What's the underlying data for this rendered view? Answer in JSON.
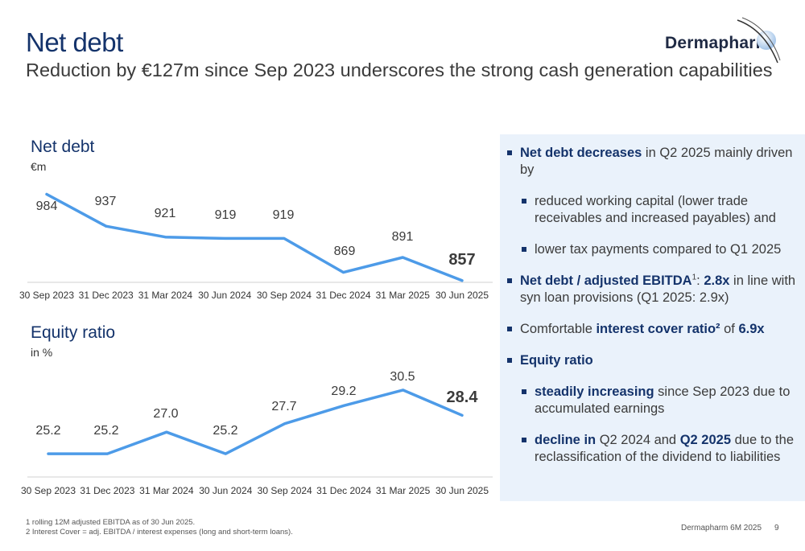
{
  "header": {
    "title": "Net debt",
    "subtitle": "Reduction by €127m since Sep 2023 underscores the strong cash generation capabilities",
    "logo_text": "Dermapharm"
  },
  "chart_data": [
    {
      "type": "line",
      "title": "Net debt",
      "unit": "€m",
      "categories": [
        "30 Sep 2023",
        "31 Dec 2023",
        "31 Mar 2024",
        "30 Jun 2024",
        "30 Sep 2024",
        "31 Dec 2024",
        "31 Mar 2025",
        "30 Jun 2025"
      ],
      "values": [
        984,
        937,
        921,
        919,
        919,
        869,
        891,
        857
      ],
      "labels": [
        "984",
        "937",
        "921",
        "919",
        "919",
        "869",
        "891",
        "857"
      ],
      "ylim": [
        820,
        1000
      ],
      "color": "#4d9be8",
      "grid": false
    },
    {
      "type": "line",
      "title": "Equity ratio",
      "unit": "in %",
      "categories": [
        "30 Sep 2023",
        "31 Dec 2023",
        "31 Mar 2024",
        "30 Jun 2024",
        "30 Sep 2024",
        "31 Dec 2024",
        "31 Mar 2025",
        "30 Jun 2025"
      ],
      "values": [
        25.2,
        25.2,
        27.0,
        25.2,
        27.7,
        29.2,
        30.5,
        28.4
      ],
      "labels": [
        "25.2",
        "25.2",
        "27.0",
        "25.2",
        "27.7",
        "29.2",
        "30.5",
        "28.4"
      ],
      "ylim": [
        24,
        31.5
      ],
      "color": "#4d9be8",
      "grid": false
    }
  ],
  "bullets": {
    "b1_bold": "Net debt decreases",
    "b1_rest": " in Q2 2025 mainly driven by",
    "b1a": "reduced working capital (lower trade receivables and increased payables) and",
    "b1b": "lower tax payments compared to Q1 2025",
    "b2_bold": "Net debt / adjusted EBITDA",
    "b2_sup": "1",
    "b2_colon": ": ",
    "b2_val": "2.8x",
    "b2_rest": " in line with syn loan provisions (Q1 2025: 2.9x)",
    "b3_pre": "Comfortable ",
    "b3_bold": "interest cover ratio²",
    "b3_mid": " of ",
    "b3_val": "6.9x",
    "b4_bold": "Equity ratio",
    "b4a_bold": "steadily increasing",
    "b4a_rest": " since Sep 2023 due to accumulated earnings",
    "b4b_bold": "decline in",
    "b4b_mid": " Q2 2024 and ",
    "b4b_bold2": "Q2 2025",
    "b4b_rest": " due to the reclassification of the dividend to liabilities"
  },
  "footnotes": {
    "f1": "1  rolling 12M adjusted EBITDA as of 30 Jun 2025.",
    "f2": "2  Interest Cover = adj. EBITDA / interest expenses (long and short-term loans)."
  },
  "footer": {
    "label": "Dermapharm 6M 2025",
    "page": "9"
  }
}
